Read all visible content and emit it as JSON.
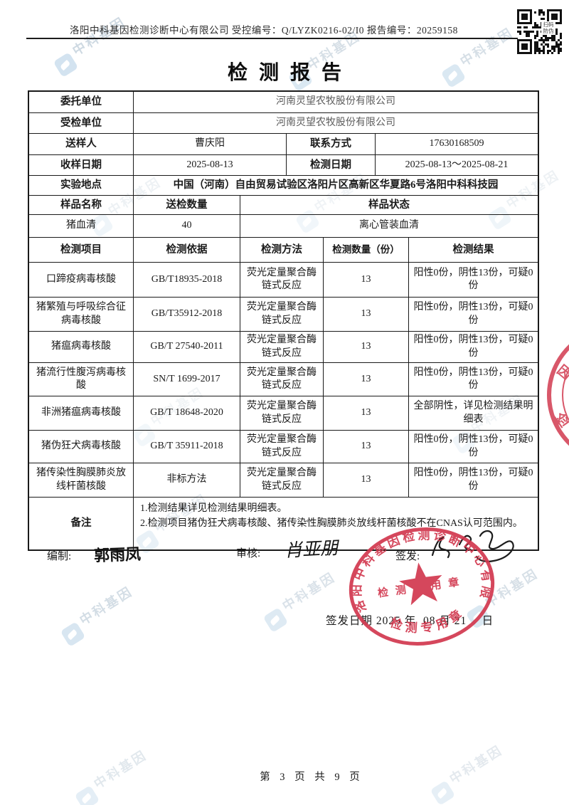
{
  "header": {
    "line": "洛阳中科基因检测诊断中心有限公司 受控编号：Q/LYZK0216-02/I0 报告编号：20259158",
    "qr_label": "扫码防伪"
  },
  "title": "检测报告",
  "info": {
    "client_label": "委托单位",
    "client": "河南灵望农牧股份有限公司",
    "inspected_label": "受检单位",
    "inspected": "河南灵望农牧股份有限公司",
    "sender_label": "送样人",
    "sender": "曹庆阳",
    "contact_label": "联系方式",
    "contact": "17630168509",
    "received_label": "收样日期",
    "received": "2025-08-13",
    "test_date_label": "检测日期",
    "test_date": "2025-08-13～2025-08-21",
    "location_label": "实验地点",
    "location": "中国（河南）自由贸易试验区洛阳片区高新区华夏路6号洛阳中科科技园"
  },
  "sample": {
    "name_label": "样品名称",
    "qty_label": "送检数量",
    "state_label": "样品状态",
    "name": "猪血清",
    "qty": "40",
    "state": "离心管装血清"
  },
  "results": {
    "headers": [
      "检测项目",
      "检测依据",
      "检测方法",
      "检测数量（份）",
      "检测结果"
    ],
    "rows": [
      {
        "item": "口蹄疫病毒核酸",
        "basis": "GB/T18935-2018",
        "method": "荧光定量聚合酶链式反应",
        "count": "13",
        "result": "阳性0份，阴性13份，可疑0份"
      },
      {
        "item": "猪繁殖与呼吸综合征病毒核酸",
        "basis": "GB/T35912-2018",
        "method": "荧光定量聚合酶链式反应",
        "count": "13",
        "result": "阳性0份，阴性13份，可疑0份"
      },
      {
        "item": "猪瘟病毒核酸",
        "basis": "GB/T 27540-2011",
        "method": "荧光定量聚合酶链式反应",
        "count": "13",
        "result": "阳性0份，阴性13份，可疑0份"
      },
      {
        "item": "猪流行性腹泻病毒核酸",
        "basis": "SN/T 1699-2017",
        "method": "荧光定量聚合酶链式反应",
        "count": "13",
        "result": "阳性0份，阴性13份，可疑0份"
      },
      {
        "item": "非洲猪瘟病毒核酸",
        "basis": "GB/T 18648-2020",
        "method": "荧光定量聚合酶链式反应",
        "count": "13",
        "result": "全部阴性，详见检测结果明细表"
      },
      {
        "item": "猪伪狂犬病毒核酸",
        "basis": "GB/T 35911-2018",
        "method": "荧光定量聚合酶链式反应",
        "count": "13",
        "result": "阳性0份，阴性13份，可疑0份"
      },
      {
        "item": "猪传染性胸膜肺炎放线杆菌核酸",
        "basis": "非标方法",
        "method": "荧光定量聚合酶链式反应",
        "count": "13",
        "result": "阳性0份，阴性13份，可疑0份"
      }
    ]
  },
  "remarks": {
    "label": "备注",
    "lines": [
      "1.检测结果详见检测结果明细表。",
      "2.检测项目猪伪狂犬病毒核酸、猪传染性胸膜肺炎放线杆菌核酸不在CNAS认可范围内。"
    ]
  },
  "signatures": {
    "prepare_label": "编制:",
    "prepare_name": "郭雨凤",
    "review_label": "审核:",
    "review_name": "肖亚朋",
    "issue_label": "签发:",
    "issue_date": "签发日期 2025 年  08 月 21　 日"
  },
  "stamp": {
    "company": "洛阳中科基因检测诊断中心有限公司",
    "seal_text": "检测专用章",
    "color": "#d23a50"
  },
  "watermark": {
    "text": "中科基因"
  },
  "footer": {
    "page": "第 3 页 共 9 页"
  }
}
